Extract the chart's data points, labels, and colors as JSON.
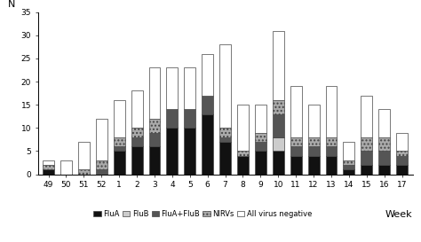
{
  "weeks": [
    "49",
    "50",
    "51",
    "52",
    "1",
    "2",
    "3",
    "4",
    "5",
    "6",
    "7",
    "8",
    "9",
    "10",
    "11",
    "12",
    "13",
    "14",
    "15",
    "16",
    "17"
  ],
  "FluA": [
    1,
    0,
    0,
    0,
    5,
    6,
    6,
    10,
    10,
    13,
    7,
    4,
    5,
    5,
    4,
    4,
    4,
    1,
    2,
    2,
    2
  ],
  "FluB": [
    0,
    0,
    0,
    0,
    0,
    0,
    0,
    0,
    0,
    0,
    0,
    0,
    0,
    3,
    0,
    0,
    0,
    0,
    0,
    0,
    0
  ],
  "FluAplusB": [
    0,
    0,
    0,
    1,
    1,
    2,
    3,
    4,
    4,
    4,
    1,
    0,
    2,
    5,
    2,
    2,
    2,
    1,
    3,
    3,
    2
  ],
  "NIRVs": [
    1,
    0,
    1,
    2,
    2,
    2,
    3,
    0,
    0,
    0,
    2,
    1,
    2,
    3,
    2,
    2,
    2,
    1,
    3,
    3,
    1
  ],
  "AllVirusNeg": [
    1,
    3,
    6,
    9,
    8,
    8,
    11,
    9,
    9,
    9,
    18,
    10,
    6,
    15,
    11,
    7,
    11,
    4,
    9,
    6,
    4
  ],
  "colors": {
    "FluA": "#111111",
    "FluB": "#cccccc",
    "FluAplusB": "#555555",
    "NIRVs": "#aaaaaa",
    "AllVirusNeg": "#ffffff"
  },
  "hatch": {
    "FluA": "",
    "FluB": "",
    "FluAplusB": "",
    "NIRVs": "....",
    "AllVirusNeg": ""
  },
  "ylim": [
    0,
    35
  ],
  "yticks": [
    0,
    5,
    10,
    15,
    20,
    25,
    30,
    35
  ],
  "ylabel": "N",
  "xlabel": "Week",
  "legend_labels": [
    "FluA",
    "FluB",
    "FluA+FluB",
    "NIRVs",
    "All virus negative"
  ],
  "background_color": "#ffffff",
  "figsize": [
    4.74,
    2.73
  ],
  "dpi": 100
}
